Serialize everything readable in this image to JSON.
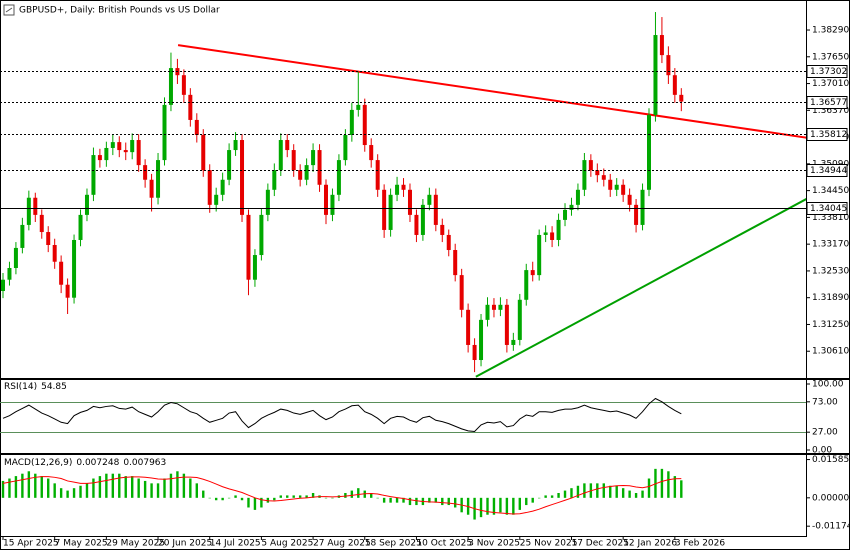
{
  "chart_data": [
    {
      "type": "candlestick",
      "title": "GBPUSD+, Daily:  British Pounds vs US Dollar",
      "categories": [
        "15 Apr 2025",
        null,
        null,
        null,
        null,
        null,
        null,
        null,
        "7 May 2025",
        null,
        null,
        null,
        null,
        null,
        null,
        null,
        "29 May 2025",
        null,
        null,
        null,
        null,
        null,
        null,
        null,
        "20 Jun 2025",
        null,
        null,
        null,
        null,
        null,
        null,
        null,
        "14 Jul 2025",
        null,
        null,
        null,
        null,
        null,
        null,
        null,
        "5 Aug 2025",
        null,
        null,
        null,
        null,
        null,
        null,
        null,
        "27 Aug 2025",
        null,
        null,
        null,
        null,
        null,
        null,
        null,
        "18 Sep 2025",
        null,
        null,
        null,
        null,
        null,
        null,
        null,
        "10 Oct 2025",
        null,
        null,
        null,
        null,
        null,
        null,
        null,
        "3 Nov 2025",
        null,
        null,
        null,
        null,
        null,
        null,
        null,
        "25 Nov 2025",
        null,
        null,
        null,
        null,
        null,
        null,
        null,
        "17 Dec 2025",
        null,
        null,
        null,
        null,
        null,
        null,
        null,
        "12 Jan 2026",
        null,
        null,
        null,
        null,
        null,
        null,
        null,
        "3 Feb 2026",
        null
      ],
      "open": [
        1.3205,
        1.3232,
        1.326,
        1.3308,
        1.3363,
        1.3428,
        1.3387,
        1.3346,
        1.3315,
        1.3275,
        1.322,
        1.3189,
        1.3327,
        1.3387,
        1.3435,
        1.353,
        1.3518,
        1.3547,
        1.3561,
        1.3542,
        1.3537,
        1.3566,
        1.3506,
        1.3471,
        1.3428,
        1.3518,
        1.365,
        1.3738,
        1.3721,
        1.3674,
        1.3614,
        1.3578,
        1.3494,
        1.3411,
        1.3435,
        1.3471,
        1.3542,
        1.3566,
        1.3387,
        1.3232,
        1.3291,
        1.3387,
        1.3447,
        1.3494,
        1.3566,
        1.3542,
        1.3494,
        1.3471,
        1.3506,
        1.3542,
        1.3459,
        1.3387,
        1.3435,
        1.3518,
        1.3578,
        1.3638,
        1.365,
        1.3554,
        1.3518,
        1.3447,
        1.3351,
        1.3435,
        1.3459,
        1.3447,
        1.3387,
        1.3339,
        1.3411,
        1.3435,
        1.3363,
        1.3339,
        1.3303,
        1.3243,
        1.316,
        1.3076,
        1.304,
        1.3136,
        1.3172,
        1.316,
        1.3172,
        1.3076,
        1.3088,
        1.3184,
        1.3255,
        1.3243,
        1.3339,
        1.3345,
        1.3327,
        1.3375,
        1.3399,
        1.3411,
        1.3447,
        1.3518,
        1.3494,
        1.3482,
        1.3471,
        1.3447,
        1.3459,
        1.3435,
        1.3411,
        1.3363,
        1.3447,
        1.3626,
        1.3817,
        1.3769,
        1.3721,
        1.3674
      ],
      "high": [
        1.3248,
        1.3275,
        1.3322,
        1.338,
        1.3445,
        1.344,
        1.34,
        1.336,
        1.333,
        1.329,
        1.3235,
        1.334,
        1.34,
        1.345,
        1.3548,
        1.3545,
        1.3562,
        1.3578,
        1.3575,
        1.356,
        1.3582,
        1.358,
        1.352,
        1.3485,
        1.3535,
        1.3668,
        1.3775,
        1.376,
        1.3735,
        1.369,
        1.363,
        1.3592,
        1.3508,
        1.3452,
        1.3488,
        1.3558,
        1.3585,
        1.358,
        1.34,
        1.3305,
        1.3402,
        1.3462,
        1.351,
        1.3582,
        1.358,
        1.3556,
        1.3508,
        1.3522,
        1.3558,
        1.3556,
        1.3472,
        1.345,
        1.3532,
        1.3592,
        1.3655,
        1.3729,
        1.3665,
        1.357,
        1.3532,
        1.346,
        1.345,
        1.3478,
        1.3475,
        1.3462,
        1.34,
        1.3425,
        1.3452,
        1.345,
        1.3378,
        1.3352,
        1.3318,
        1.3258,
        1.3175,
        1.3092,
        1.315,
        1.319,
        1.3188,
        1.319,
        1.3186,
        1.3105,
        1.3198,
        1.327,
        1.3275,
        1.3352,
        1.3362,
        1.336,
        1.339,
        1.3415,
        1.3428,
        1.3462,
        1.3535,
        1.3532,
        1.351,
        1.3498,
        1.3485,
        1.3475,
        1.3472,
        1.345,
        1.3425,
        1.3462,
        1.3642,
        1.3872,
        1.386,
        1.379,
        1.3738,
        1.369
      ],
      "low": [
        1.3188,
        1.3218,
        1.3245,
        1.3295,
        1.335,
        1.337,
        1.333,
        1.3298,
        1.3258,
        1.32,
        1.315,
        1.3175,
        1.3312,
        1.3372,
        1.342,
        1.35,
        1.3502,
        1.353,
        1.3525,
        1.3518,
        1.352,
        1.349,
        1.3452,
        1.3395,
        1.3412,
        1.3505,
        1.3635,
        1.37,
        1.3655,
        1.3598,
        1.356,
        1.3478,
        1.3392,
        1.3395,
        1.342,
        1.3458,
        1.3528,
        1.337,
        1.3195,
        1.3215,
        1.3278,
        1.3372,
        1.3432,
        1.348,
        1.3525,
        1.3478,
        1.3455,
        1.3458,
        1.349,
        1.3442,
        1.3365,
        1.3372,
        1.342,
        1.3505,
        1.3562,
        1.3622,
        1.3538,
        1.35,
        1.343,
        1.3332,
        1.3335,
        1.342,
        1.343,
        1.337,
        1.3322,
        1.3325,
        1.3398,
        1.3348,
        1.3322,
        1.3288,
        1.3228,
        1.3142,
        1.3058,
        1.3011,
        1.3025,
        1.312,
        1.3142,
        1.3145,
        1.3058,
        1.3062,
        1.3075,
        1.317,
        1.3228,
        1.323,
        1.3322,
        1.331,
        1.3312,
        1.336,
        1.3385,
        1.3398,
        1.3432,
        1.3478,
        1.3465,
        1.3455,
        1.343,
        1.3432,
        1.3418,
        1.3395,
        1.3345,
        1.335,
        1.3432,
        1.361,
        1.375,
        1.37,
        1.3655,
        1.3635
      ],
      "close": [
        1.3232,
        1.326,
        1.3308,
        1.3363,
        1.3428,
        1.3387,
        1.3346,
        1.3315,
        1.3275,
        1.322,
        1.3189,
        1.3327,
        1.3387,
        1.3435,
        1.353,
        1.3518,
        1.3547,
        1.3561,
        1.3542,
        1.3537,
        1.3566,
        1.3506,
        1.3471,
        1.3428,
        1.3518,
        1.365,
        1.3738,
        1.3721,
        1.3674,
        1.3614,
        1.3578,
        1.3494,
        1.3411,
        1.3435,
        1.3471,
        1.3542,
        1.3566,
        1.3387,
        1.3232,
        1.3291,
        1.3387,
        1.3447,
        1.3494,
        1.3566,
        1.3542,
        1.3494,
        1.3471,
        1.3506,
        1.3542,
        1.3459,
        1.3387,
        1.3435,
        1.3518,
        1.3578,
        1.3638,
        1.365,
        1.3554,
        1.3518,
        1.3447,
        1.3351,
        1.3435,
        1.3459,
        1.3447,
        1.3387,
        1.3339,
        1.3411,
        1.3435,
        1.3363,
        1.3339,
        1.3303,
        1.3243,
        1.316,
        1.3076,
        1.304,
        1.3136,
        1.3172,
        1.316,
        1.3172,
        1.3076,
        1.3088,
        1.3184,
        1.3255,
        1.3243,
        1.3339,
        1.3345,
        1.3327,
        1.3375,
        1.3399,
        1.3411,
        1.3447,
        1.3518,
        1.3494,
        1.3482,
        1.3471,
        1.3447,
        1.3459,
        1.3435,
        1.3411,
        1.3363,
        1.3447,
        1.3626,
        1.3817,
        1.3769,
        1.3721,
        1.3674,
        1.3658
      ],
      "up_color": "#00a800",
      "down_color": "#e60000",
      "ylim": [
        1.2997,
        1.3896
      ],
      "yticks": [
        {
          "value": 1.3829,
          "label": "1.38290"
        },
        {
          "value": 1.3765,
          "label": "1.37650"
        },
        {
          "value": 1.3701,
          "label": "1.37010"
        },
        {
          "value": 1.3637,
          "label": "1.36370"
        },
        {
          "value": 1.3573,
          "label": "1.35730"
        },
        {
          "value": 1.3509,
          "label": "1.35090"
        },
        {
          "value": 1.3445,
          "label": "1.34450"
        },
        {
          "value": 1.3381,
          "label": "1.33810"
        },
        {
          "value": 1.3317,
          "label": "1.33170"
        },
        {
          "value": 1.3253,
          "label": "1.32530"
        },
        {
          "value": 1.3189,
          "label": "1.31890"
        },
        {
          "value": 1.3125,
          "label": "1.31250"
        },
        {
          "value": 1.3061,
          "label": "1.30610"
        }
      ],
      "price_lines": [
        {
          "value": 1.37302,
          "style": "dotted"
        },
        {
          "value": 1.36577,
          "style": "dotted"
        },
        {
          "value": 1.35812,
          "style": "dotted"
        },
        {
          "value": 1.34944,
          "style": "dotted"
        },
        {
          "value": 1.34045,
          "style": "solid"
        }
      ],
      "trendlines": [
        {
          "color": "#ff0000",
          "x": [
            27.1,
            124.6
          ],
          "y": [
            1.3793,
            1.3571
          ]
        },
        {
          "color": "#00a000",
          "x": [
            73.2,
            124.6
          ],
          "y": [
            1.3,
            1.3427
          ]
        }
      ]
    },
    {
      "type": "line",
      "title": "RSI(14)",
      "color": "#000000",
      "values": [
        48,
        52,
        58,
        63,
        68,
        62,
        56,
        52,
        47,
        42,
        40,
        52,
        57,
        60,
        66,
        64,
        66,
        67,
        63,
        62,
        65,
        58,
        54,
        50,
        58,
        68,
        72,
        70,
        64,
        58,
        55,
        48,
        42,
        45,
        48,
        56,
        58,
        44,
        34,
        40,
        48,
        53,
        57,
        62,
        60,
        56,
        54,
        57,
        60,
        52,
        46,
        50,
        58,
        62,
        67,
        68,
        58,
        54,
        48,
        40,
        48,
        51,
        50,
        45,
        42,
        49,
        51,
        45,
        43,
        40,
        36,
        32,
        29,
        28,
        38,
        42,
        41,
        43,
        35,
        37,
        47,
        53,
        51,
        58,
        58,
        57,
        60,
        62,
        62,
        64,
        68,
        64,
        62,
        60,
        58,
        59,
        56,
        53,
        48,
        58,
        70,
        78,
        73,
        66,
        60,
        54.85
      ],
      "ylim": [
        0,
        100
      ],
      "yticks": [
        {
          "value": 100,
          "label": "100.00"
        },
        {
          "value": 73,
          "label": "73.00"
        },
        {
          "value": 27,
          "label": "27.00"
        },
        {
          "value": 0,
          "label": "0.00"
        }
      ],
      "levels": [
        73,
        27
      ],
      "level_color": "#5a8f5a"
    },
    {
      "type": "macd",
      "title": "MACD(12,26,9)",
      "histogram": {
        "color": "#00b000",
        "values": [
          0.007,
          0.008,
          0.009,
          0.01,
          0.011,
          0.01,
          0.009,
          0.008,
          0.006,
          0.004,
          0.003,
          0.004,
          0.005,
          0.006,
          0.008,
          0.009,
          0.01,
          0.01,
          0.01,
          0.009,
          0.009,
          0.008,
          0.007,
          0.006,
          0.006,
          0.008,
          0.01,
          0.011,
          0.01,
          0.008,
          0.006,
          0.003,
          0.0,
          -0.001,
          -0.001,
          0.0,
          0.001,
          -0.001,
          -0.004,
          -0.005,
          -0.004,
          -0.002,
          -0.001,
          0.001,
          0.001,
          0.001,
          0.001,
          0.001,
          0.002,
          0.001,
          0.0,
          0.0,
          0.001,
          0.002,
          0.003,
          0.004,
          0.003,
          0.002,
          0.0,
          -0.002,
          -0.002,
          -0.002,
          -0.002,
          -0.003,
          -0.003,
          -0.003,
          -0.002,
          -0.002,
          -0.003,
          -0.003,
          -0.004,
          -0.006,
          -0.007,
          -0.009,
          -0.008,
          -0.007,
          -0.007,
          -0.006,
          -0.007,
          -0.007,
          -0.005,
          -0.003,
          -0.002,
          0.0,
          0.001,
          0.001,
          0.002,
          0.003,
          0.004,
          0.005,
          0.006,
          0.006,
          0.006,
          0.006,
          0.005,
          0.005,
          0.004,
          0.003,
          0.002,
          0.003,
          0.008,
          0.012,
          0.012,
          0.011,
          0.009,
          0.007248
        ]
      },
      "signal": {
        "color": "#ff0000",
        "values": [
          0.006,
          0.0065,
          0.007,
          0.0075,
          0.008,
          0.0085,
          0.0088,
          0.0088,
          0.0085,
          0.008,
          0.007,
          0.0065,
          0.006,
          0.006,
          0.0062,
          0.0067,
          0.0072,
          0.0077,
          0.0082,
          0.0085,
          0.0087,
          0.0087,
          0.0085,
          0.0082,
          0.0078,
          0.0077,
          0.0079,
          0.0083,
          0.0086,
          0.0086,
          0.0084,
          0.0077,
          0.0068,
          0.0057,
          0.0046,
          0.0037,
          0.003,
          0.0022,
          0.0011,
          0.0,
          -0.0008,
          -0.0012,
          -0.0013,
          -0.0011,
          -0.0008,
          -0.0005,
          -0.0002,
          0.0,
          0.0003,
          0.0005,
          0.0005,
          0.0004,
          0.0005,
          0.0007,
          0.001,
          0.0014,
          0.0017,
          0.0018,
          0.0016,
          0.001,
          0.0005,
          0.0001,
          -0.0003,
          -0.0008,
          -0.0012,
          -0.0015,
          -0.0017,
          -0.0018,
          -0.002,
          -0.0022,
          -0.0025,
          -0.003,
          -0.0036,
          -0.0045,
          -0.0052,
          -0.0057,
          -0.0061,
          -0.0063,
          -0.0065,
          -0.0067,
          -0.0066,
          -0.0061,
          -0.0055,
          -0.0047,
          -0.0037,
          -0.0028,
          -0.0019,
          -0.001,
          -0.0001,
          0.001,
          0.002,
          0.0029,
          0.0037,
          0.0043,
          0.0047,
          0.005,
          0.0051,
          0.005,
          0.0045,
          0.0042,
          0.0047,
          0.0058,
          0.0068,
          0.0075,
          0.0079,
          0.007963
        ]
      },
      "ylim": [
        -0.0125,
        0.0165
      ],
      "yticks": [
        0.015855,
        {
          "value": 0,
          "label": "0.000000"
        },
        -0.011746
      ]
    }
  ]
}
